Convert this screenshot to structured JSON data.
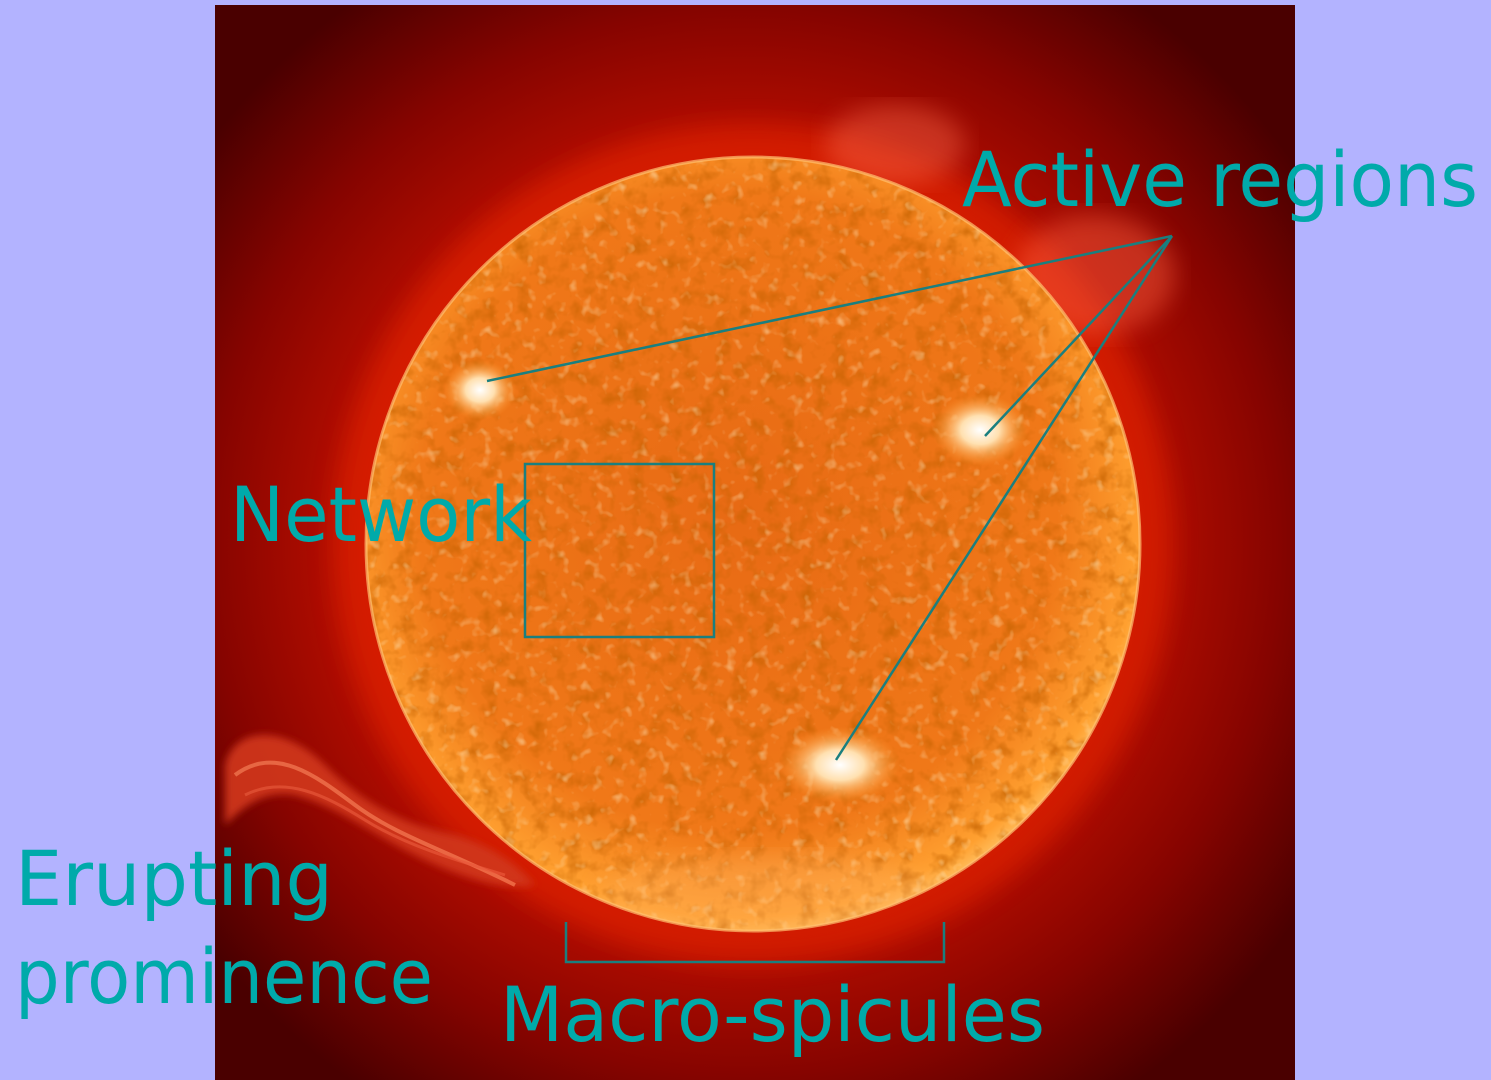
{
  "labels": {
    "active_regions": "Active regions",
    "network": "Network",
    "erupting_line1": "Erupting",
    "erupting_line2": "prominence",
    "macro_spicules": "Macro-spicules"
  },
  "colors": {
    "background": "#b3b3ff",
    "annotation": "#00aaaa",
    "leader_lines": "#1a7f7f",
    "sun_core": "#ff9a22",
    "corona": "#c21000",
    "sky": "#5a0000"
  }
}
